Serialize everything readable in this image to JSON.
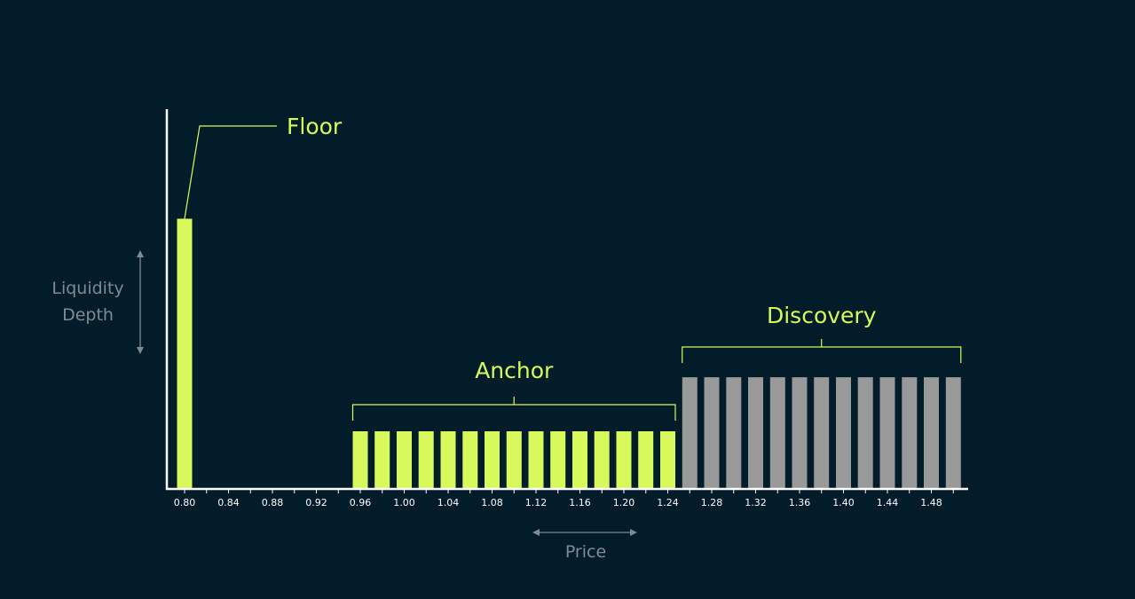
{
  "chart_data": {
    "type": "bar",
    "title": "",
    "xlabel": "Price",
    "ylabel": "Liquidity Depth",
    "ylabel_lines": [
      "Liquidity",
      "Depth"
    ],
    "grid": false,
    "x_ticks": [
      "0.80",
      "0.84",
      "0.88",
      "0.92",
      "0.96",
      "1.00",
      "1.04",
      "1.08",
      "1.12",
      "1.16",
      "1.20",
      "1.24",
      "1.28",
      "1.32",
      "1.36",
      "1.40",
      "1.44",
      "1.48"
    ],
    "x_range": [
      0.79,
      1.51
    ],
    "y_range": [
      0,
      100
    ],
    "series": [
      {
        "name": "Floor",
        "color": "#d8f95b",
        "bars": [
          {
            "price": 0.8,
            "depth": 75
          }
        ]
      },
      {
        "name": "Anchor",
        "color": "#d8f95b",
        "bars": [
          {
            "price": 0.96,
            "depth": 16
          },
          {
            "price": 0.98,
            "depth": 16
          },
          {
            "price": 1.0,
            "depth": 16
          },
          {
            "price": 1.02,
            "depth": 16
          },
          {
            "price": 1.04,
            "depth": 16
          },
          {
            "price": 1.06,
            "depth": 16
          },
          {
            "price": 1.08,
            "depth": 16
          },
          {
            "price": 1.1,
            "depth": 16
          },
          {
            "price": 1.12,
            "depth": 16
          },
          {
            "price": 1.14,
            "depth": 16
          },
          {
            "price": 1.16,
            "depth": 16
          },
          {
            "price": 1.18,
            "depth": 16
          },
          {
            "price": 1.2,
            "depth": 16
          },
          {
            "price": 1.22,
            "depth": 16
          },
          {
            "price": 1.24,
            "depth": 16
          }
        ]
      },
      {
        "name": "Discovery",
        "color": "#999999",
        "bars": [
          {
            "price": 1.26,
            "depth": 31
          },
          {
            "price": 1.28,
            "depth": 31
          },
          {
            "price": 1.3,
            "depth": 31
          },
          {
            "price": 1.32,
            "depth": 31
          },
          {
            "price": 1.34,
            "depth": 31
          },
          {
            "price": 1.36,
            "depth": 31
          },
          {
            "price": 1.38,
            "depth": 31
          },
          {
            "price": 1.4,
            "depth": 31
          },
          {
            "price": 1.42,
            "depth": 31
          },
          {
            "price": 1.44,
            "depth": 31
          },
          {
            "price": 1.46,
            "depth": 31
          },
          {
            "price": 1.48,
            "depth": 31
          },
          {
            "price": 1.5,
            "depth": 31
          }
        ]
      }
    ],
    "colors": {
      "background": "#031c2a",
      "axis": "#ffffff",
      "accent": "#d8f95b",
      "muted": "#7e8c92"
    }
  }
}
